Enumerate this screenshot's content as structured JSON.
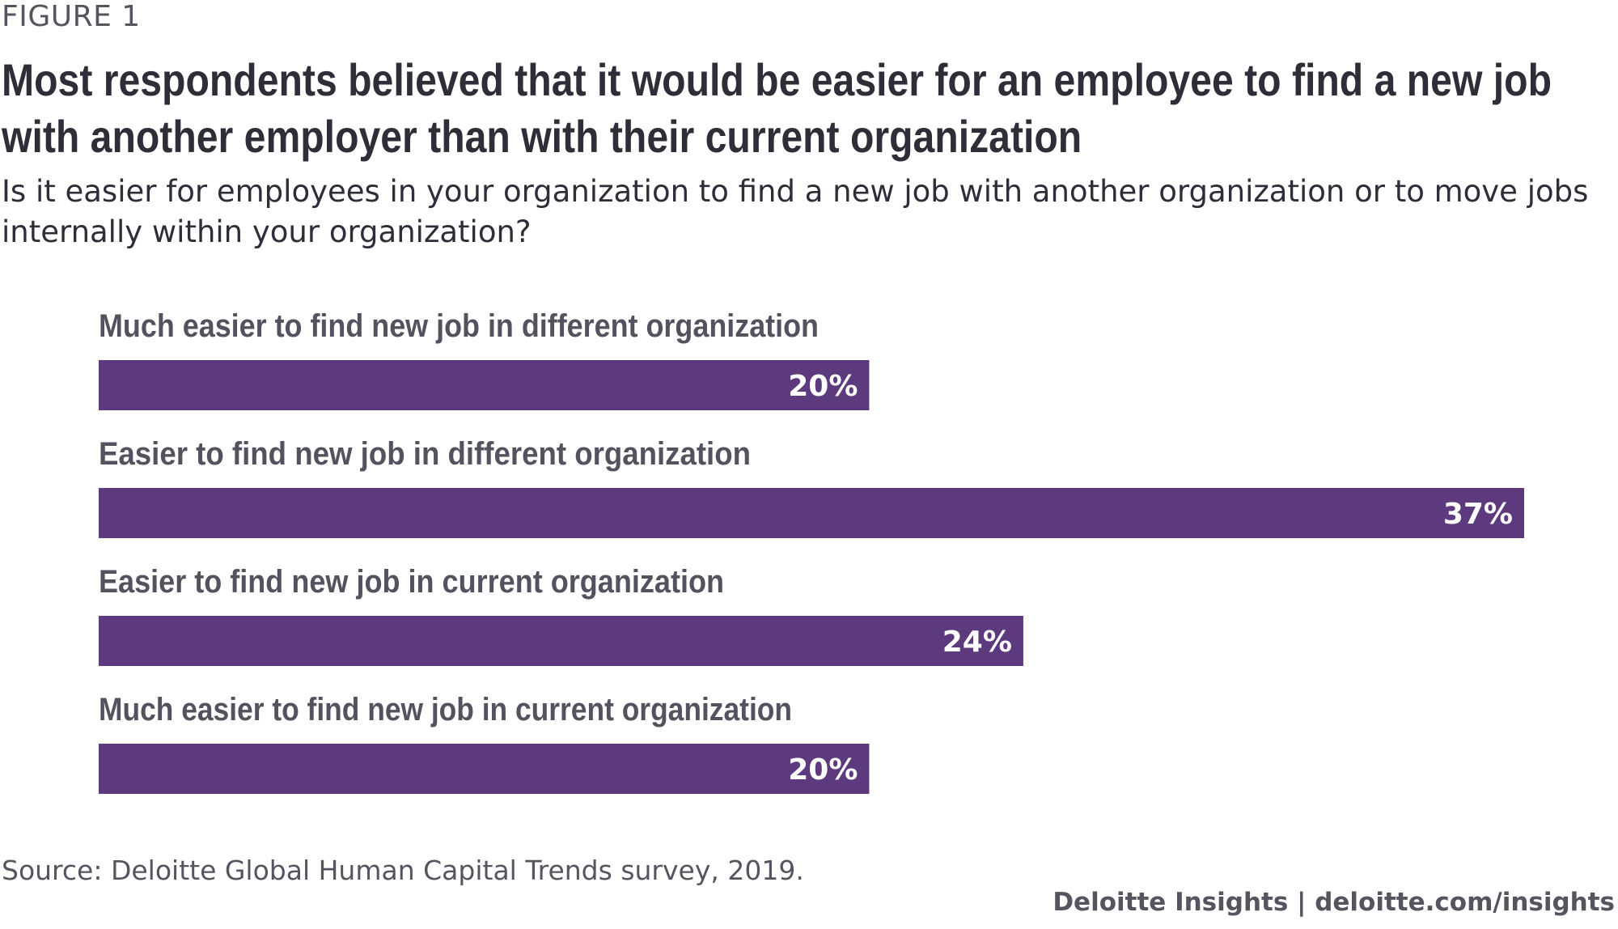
{
  "figure_label": "FIGURE 1",
  "title": "Most respondents believed that it would be easier for an employee to find a new job with another employer than with their current organization",
  "subtitle": "Is it easier for employees in your organization to find a new job with another organization or to move jobs internally within your organization?",
  "source": "Source: Deloitte Global Human Capital Trends survey, 2019.",
  "credit": "Deloitte Insights | deloitte.com/insights",
  "colors": {
    "bar": "#5c3a7d",
    "label": "#53535f",
    "value_label": "#ffffff"
  },
  "chart_data": {
    "type": "bar",
    "orientation": "horizontal",
    "categories": [
      "Much easier to find new job in different organization",
      "Easier to find new job in different organization",
      "Easier to find new job in current organization",
      "Much easier to find new job in current organization"
    ],
    "values": [
      20,
      37,
      24,
      20
    ],
    "value_labels": [
      "20%",
      "37%",
      "24%",
      "20%"
    ],
    "unit": "%",
    "xlim": [
      0,
      37
    ],
    "grid": false,
    "legend": "none"
  }
}
